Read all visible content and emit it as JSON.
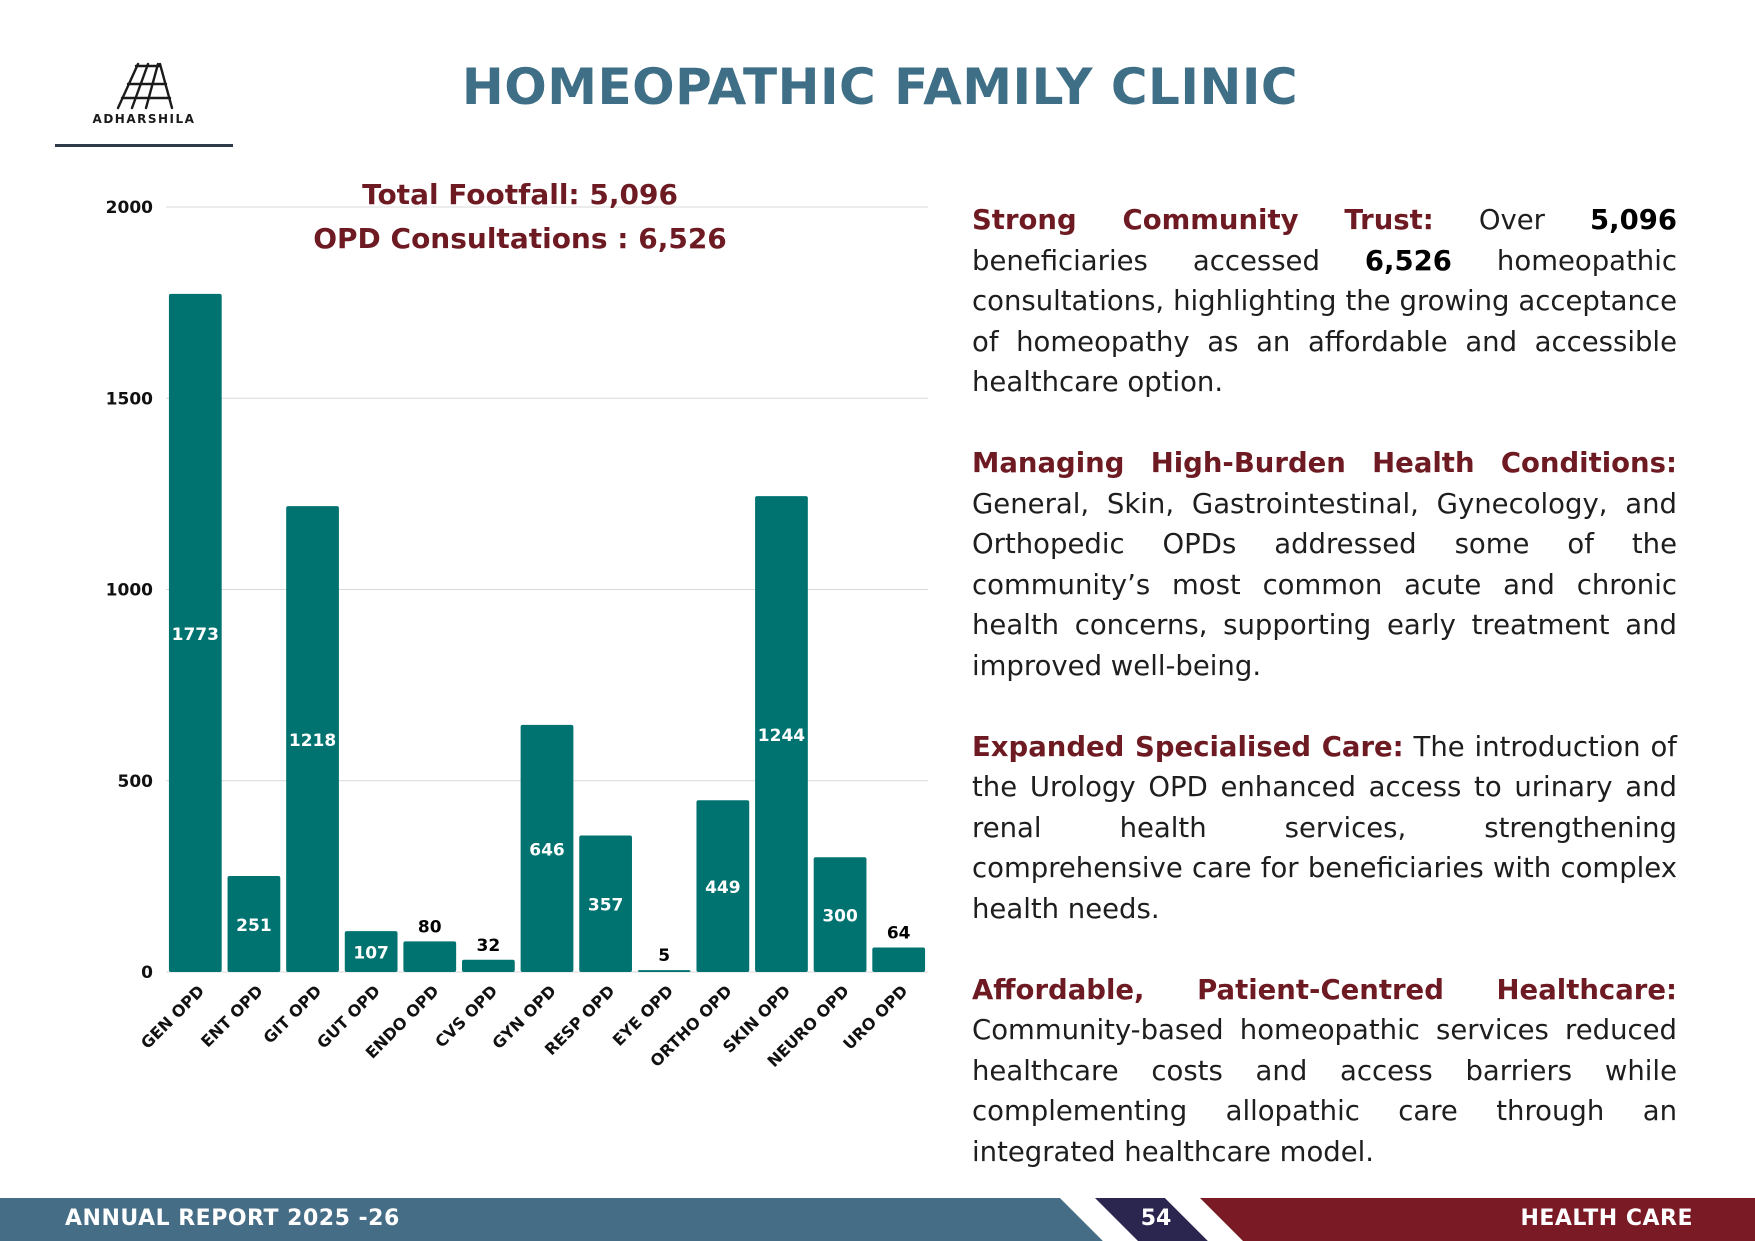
{
  "logo": {
    "text": "ADHARSHILA"
  },
  "page_title": "HOMEOPATHIC FAMILY CLINIC",
  "chart_headline": {
    "line1": "Total Footfall: 5,096",
    "line2": "OPD Consultations : 6,526"
  },
  "chart_data": {
    "type": "bar",
    "categories": [
      "GEN OPD",
      "ENT OPD",
      "GIT OPD",
      "GUT OPD",
      "ENDO OPD",
      "CVS OPD",
      "GYN OPD",
      "RESP OPD",
      "EYE OPD",
      "ORTHO OPD",
      "SKIN OPD",
      "NEURO OPD",
      "URO OPD"
    ],
    "values": [
      1773,
      251,
      1218,
      107,
      80,
      32,
      646,
      357,
      5,
      449,
      1244,
      300,
      64
    ],
    "ylim": [
      0,
      2000
    ],
    "yticks": [
      0,
      500,
      1000,
      1500,
      2000
    ],
    "grid": true,
    "colors": {
      "bar": "#007370",
      "label_inside": "#ffffff",
      "label_outside": "#000000",
      "grid": "#d9d9d9"
    }
  },
  "paragraphs": [
    {
      "head": "Strong Community Trust:",
      "t1": " Over ",
      "b1": "5,096",
      "t2": " beneficiaries accessed ",
      "b2": "6,526",
      "t3": " homeopathic consultations, highlighting the growing acceptance of homeopathy as an affordable and accessible healthcare option."
    },
    {
      "head": "Managing High-Burden Health Conditions:",
      "body": " General, Skin, Gastrointestinal, Gynecology, and Orthopedic OPDs addressed some of the community’s most common acute and chronic health concerns, supporting early treatment and improved well-being."
    },
    {
      "head": "Expanded Specialised Care:",
      "body": " The introduction of the Urology OPD enhanced access to urinary and renal health services, strengthening comprehensive care for beneficiaries with complex health needs."
    },
    {
      "head": "Affordable, Patient-Centred Healthcare:",
      "body": " Community-based homeopathic services reduced healthcare costs and access barriers while complementing allopathic care through an integrated healthcare model."
    }
  ],
  "footer": {
    "left": "ANNUAL REPORT 2025 -26",
    "page": "54",
    "right": "HEALTH CARE",
    "colors": {
      "left_band": "#466d86",
      "middle_band": "#2b2650",
      "right_band": "#7a1a24"
    }
  }
}
